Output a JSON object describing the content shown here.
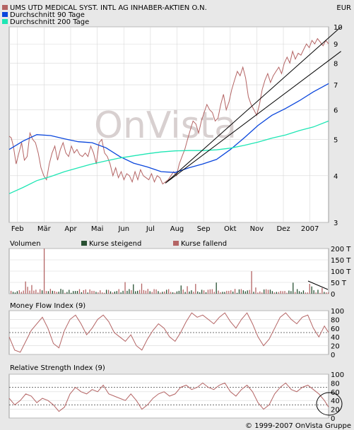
{
  "header": {
    "title": "UMS UTD MEDICAL SYST. INTL AG INHABER-AKTIEN O.N.",
    "currency": "EUR",
    "legend": [
      {
        "label": "UMS UTD MEDICAL SYST. INTL AG INHABER-AKTIEN O.N.",
        "color": "#b46464"
      },
      {
        "label": "Durchschnitt 90 Tage",
        "color": "#0a46dc"
      },
      {
        "label": "Durchschnitt 200 Tage",
        "color": "#1ee6b4"
      }
    ]
  },
  "watermark": "OnVista",
  "copyright": "© 1999-2007 OnVista Gruppe",
  "colors": {
    "background": "#e8e8e8",
    "panel": "#ffffff",
    "price": "#b46464",
    "ma90": "#0a46dc",
    "ma200": "#1ee6b4",
    "up_volume": "#285032",
    "down_volume": "#b46464",
    "trendline": "#000000"
  },
  "chart_data": [
    {
      "type": "line",
      "name": "price",
      "y_scale": "log",
      "ylim": [
        3.0,
        10.0
      ],
      "y_ticks": [
        3,
        4,
        5,
        6,
        7,
        8,
        9,
        10
      ],
      "x_ticks": [
        "Feb",
        "Mär",
        "Apr",
        "Mai",
        "Jun",
        "Jul",
        "Aug",
        "Sep",
        "Okt",
        "Nov",
        "Dez",
        "2007"
      ],
      "grid": true,
      "series": [
        {
          "name": "UMS UTD MEDICAL SYST. INTL AG INHABER-AKTIEN O.N.",
          "t": [
            0,
            3,
            6,
            10,
            14,
            18,
            22,
            26,
            30,
            34,
            38,
            42,
            46,
            50,
            54,
            58,
            62,
            66,
            70,
            74,
            78,
            82,
            86,
            90,
            94,
            98,
            102,
            106,
            110,
            114,
            118,
            122,
            126,
            130,
            134,
            138,
            142,
            146,
            150,
            154,
            158,
            162,
            166,
            170,
            174,
            178,
            182,
            186,
            190,
            194,
            198,
            202,
            206,
            210,
            214,
            218,
            222,
            226,
            230,
            234,
            238,
            242,
            246,
            250,
            254,
            258,
            262,
            266,
            270,
            274,
            278,
            282,
            286,
            290,
            294,
            298,
            302,
            306,
            310,
            314,
            318,
            322,
            326,
            330,
            334,
            338,
            342,
            346,
            350,
            354,
            358,
            362,
            366,
            370,
            374,
            378,
            382,
            386,
            390,
            394,
            398,
            402,
            406,
            410,
            414,
            418,
            422,
            426,
            430,
            434,
            438,
            442,
            446,
            450,
            454,
            458,
            462
          ],
          "values": [
            5.1,
            5.05,
            4.8,
            4.3,
            4.6,
            4.9,
            4.4,
            4.5,
            5.2,
            5.0,
            4.9,
            4.6,
            4.2,
            4.0,
            3.9,
            4.3,
            4.6,
            4.8,
            4.4,
            4.7,
            4.9,
            4.6,
            4.5,
            4.8,
            4.6,
            4.7,
            4.55,
            4.5,
            4.6,
            4.5,
            4.8,
            4.6,
            4.3,
            4.9,
            5.0,
            4.6,
            4.5,
            4.3,
            4.0,
            4.2,
            3.95,
            4.1,
            3.9,
            4.05,
            4.0,
            3.85,
            4.1,
            3.9,
            4.15,
            4.0,
            3.95,
            3.9,
            4.05,
            3.85,
            4.0,
            3.95,
            3.8,
            3.85,
            3.9,
            4.0,
            4.1,
            4.0,
            4.3,
            4.5,
            4.7,
            5.0,
            5.3,
            5.6,
            5.5,
            5.2,
            5.6,
            5.9,
            6.2,
            6.0,
            5.9,
            5.6,
            5.7,
            6.2,
            6.6,
            6.0,
            6.3,
            6.8,
            7.2,
            7.6,
            7.4,
            7.8,
            7.3,
            6.5,
            6.2,
            6.0,
            5.8,
            6.2,
            6.8,
            7.2,
            7.5,
            7.1,
            7.4,
            7.6,
            7.8,
            7.5,
            8.0,
            8.3,
            8.0,
            8.6,
            8.2,
            8.5,
            8.4,
            8.7,
            9.0,
            8.8,
            9.2,
            9.0,
            9.3,
            9.1,
            8.9,
            9.2,
            9.0
          ]
        },
        {
          "name": "Durchschnitt 90 Tage",
          "t": [
            0,
            20,
            40,
            60,
            80,
            100,
            120,
            140,
            160,
            180,
            200,
            220,
            240,
            260,
            280,
            300,
            320,
            340,
            360,
            380,
            400,
            420,
            440,
            462
          ],
          "values": [
            4.7,
            4.95,
            5.15,
            5.12,
            5.02,
            4.93,
            4.9,
            4.75,
            4.5,
            4.32,
            4.22,
            4.1,
            4.08,
            4.2,
            4.3,
            4.42,
            4.7,
            5.05,
            5.45,
            5.8,
            6.05,
            6.35,
            6.7,
            7.05
          ]
        },
        {
          "name": "Durchschnitt 200 Tage",
          "t": [
            0,
            20,
            40,
            60,
            80,
            100,
            120,
            140,
            160,
            180,
            200,
            220,
            240,
            260,
            280,
            300,
            320,
            340,
            360,
            380,
            400,
            420,
            440,
            462
          ],
          "values": [
            3.58,
            3.72,
            3.88,
            3.98,
            4.1,
            4.2,
            4.3,
            4.38,
            4.46,
            4.52,
            4.58,
            4.63,
            4.66,
            4.67,
            4.67,
            4.69,
            4.74,
            4.82,
            4.92,
            5.04,
            5.14,
            5.28,
            5.4,
            5.6
          ]
        }
      ],
      "trendlines": [
        {
          "from": [
            226,
            3.82
          ],
          "to": [
            480,
            10.0
          ]
        },
        {
          "from": [
            226,
            3.82
          ],
          "to": [
            480,
            8.6
          ]
        }
      ]
    },
    {
      "type": "bar",
      "name": "volume",
      "title": "Volumen",
      "legend": [
        "Kurse steigend",
        "Kurse fallend"
      ],
      "y_ticks": [
        "0",
        "50 T",
        "100 T",
        "150 T",
        "200 T"
      ],
      "ylim": [
        0,
        200
      ]
    },
    {
      "type": "line",
      "name": "mfi",
      "title": "Money Flow Index (9)",
      "ylim": [
        0,
        100
      ],
      "y_ticks": [
        0,
        20,
        40,
        60,
        80,
        100
      ],
      "reference_lines": [
        50
      ],
      "series": [
        {
          "name": "Money Flow Index (9)",
          "t": [
            0,
            8,
            16,
            24,
            32,
            40,
            48,
            56,
            64,
            72,
            80,
            88,
            96,
            104,
            112,
            120,
            128,
            136,
            144,
            152,
            160,
            168,
            176,
            184,
            192,
            200,
            208,
            216,
            224,
            232,
            240,
            248,
            256,
            264,
            272,
            280,
            288,
            296,
            304,
            312,
            320,
            328,
            336,
            344,
            352,
            360,
            368,
            376,
            384,
            392,
            400,
            408,
            416,
            424,
            432,
            440,
            448,
            456,
            462
          ],
          "values": [
            40,
            10,
            5,
            30,
            55,
            70,
            85,
            60,
            25,
            15,
            55,
            80,
            90,
            70,
            45,
            60,
            80,
            90,
            75,
            50,
            40,
            30,
            45,
            20,
            10,
            35,
            55,
            70,
            60,
            40,
            30,
            50,
            75,
            95,
            85,
            90,
            80,
            70,
            85,
            95,
            75,
            60,
            80,
            95,
            70,
            40,
            20,
            35,
            60,
            85,
            95,
            80,
            70,
            85,
            90,
            60,
            40,
            65,
            50
          ]
        }
      ]
    },
    {
      "type": "line",
      "name": "rsi",
      "title": "Relative Strength Index (9)",
      "ylim": [
        0,
        100
      ],
      "y_ticks": [
        0,
        20,
        40,
        60,
        80,
        100
      ],
      "reference_lines": [
        30,
        70
      ],
      "series": [
        {
          "name": "Relative Strength Index (9)",
          "t": [
            0,
            8,
            16,
            24,
            32,
            40,
            48,
            56,
            64,
            72,
            80,
            88,
            96,
            104,
            112,
            120,
            128,
            136,
            144,
            152,
            160,
            168,
            176,
            184,
            192,
            200,
            208,
            216,
            224,
            232,
            240,
            248,
            256,
            264,
            272,
            280,
            288,
            296,
            304,
            312,
            320,
            328,
            336,
            344,
            352,
            360,
            368,
            376,
            384,
            392,
            400,
            408,
            416,
            424,
            432,
            440,
            448,
            456,
            462
          ],
          "values": [
            45,
            30,
            40,
            55,
            50,
            35,
            45,
            40,
            30,
            15,
            25,
            55,
            70,
            60,
            55,
            65,
            60,
            75,
            55,
            50,
            45,
            40,
            55,
            40,
            20,
            30,
            45,
            55,
            60,
            50,
            55,
            70,
            75,
            65,
            70,
            80,
            70,
            65,
            75,
            80,
            60,
            50,
            65,
            75,
            60,
            35,
            20,
            30,
            55,
            70,
            80,
            65,
            60,
            70,
            75,
            65,
            55,
            40,
            25
          ]
        }
      ]
    }
  ]
}
